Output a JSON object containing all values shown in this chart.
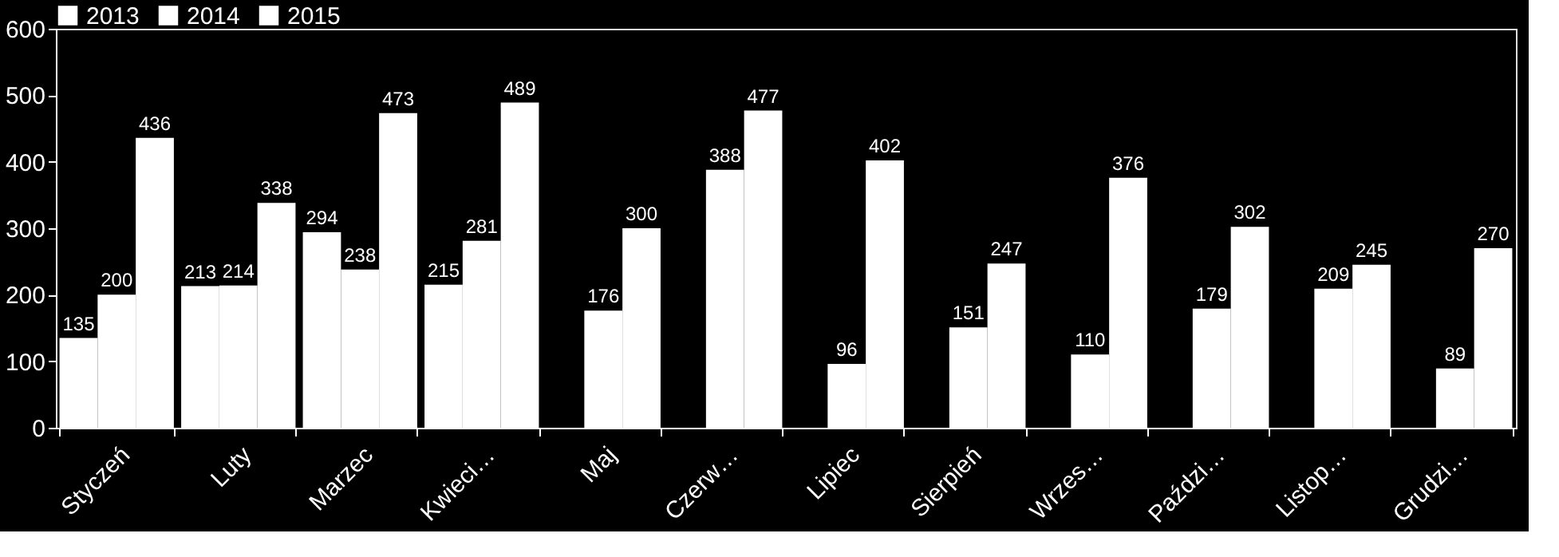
{
  "chart_data": {
    "type": "bar",
    "categories": [
      "Styczeń",
      "Luty",
      "Marzec",
      "Kwieci…",
      "Maj",
      "Czerw…",
      "Lipiec",
      "Sierpień",
      "Wrzes…",
      "Paździ…",
      "Listop…",
      "Grudzi…"
    ],
    "series": [
      {
        "name": "2013",
        "color": "#ffffff",
        "values": [
          135,
          213,
          294,
          215,
          null,
          null,
          null,
          null,
          null,
          null,
          null,
          null
        ]
      },
      {
        "name": "2014",
        "color": "#ffffff",
        "values": [
          200,
          214,
          238,
          281,
          176,
          388,
          96,
          151,
          110,
          179,
          209,
          89
        ]
      },
      {
        "name": "2015",
        "color": "#ffffff",
        "values": [
          436,
          338,
          473,
          489,
          300,
          477,
          402,
          247,
          376,
          302,
          245,
          270
        ]
      }
    ],
    "ylim": [
      0,
      600
    ],
    "yticks": [
      0,
      100,
      200,
      300,
      400,
      500,
      600
    ],
    "data_labels": true,
    "legend": "top",
    "grid": false
  }
}
